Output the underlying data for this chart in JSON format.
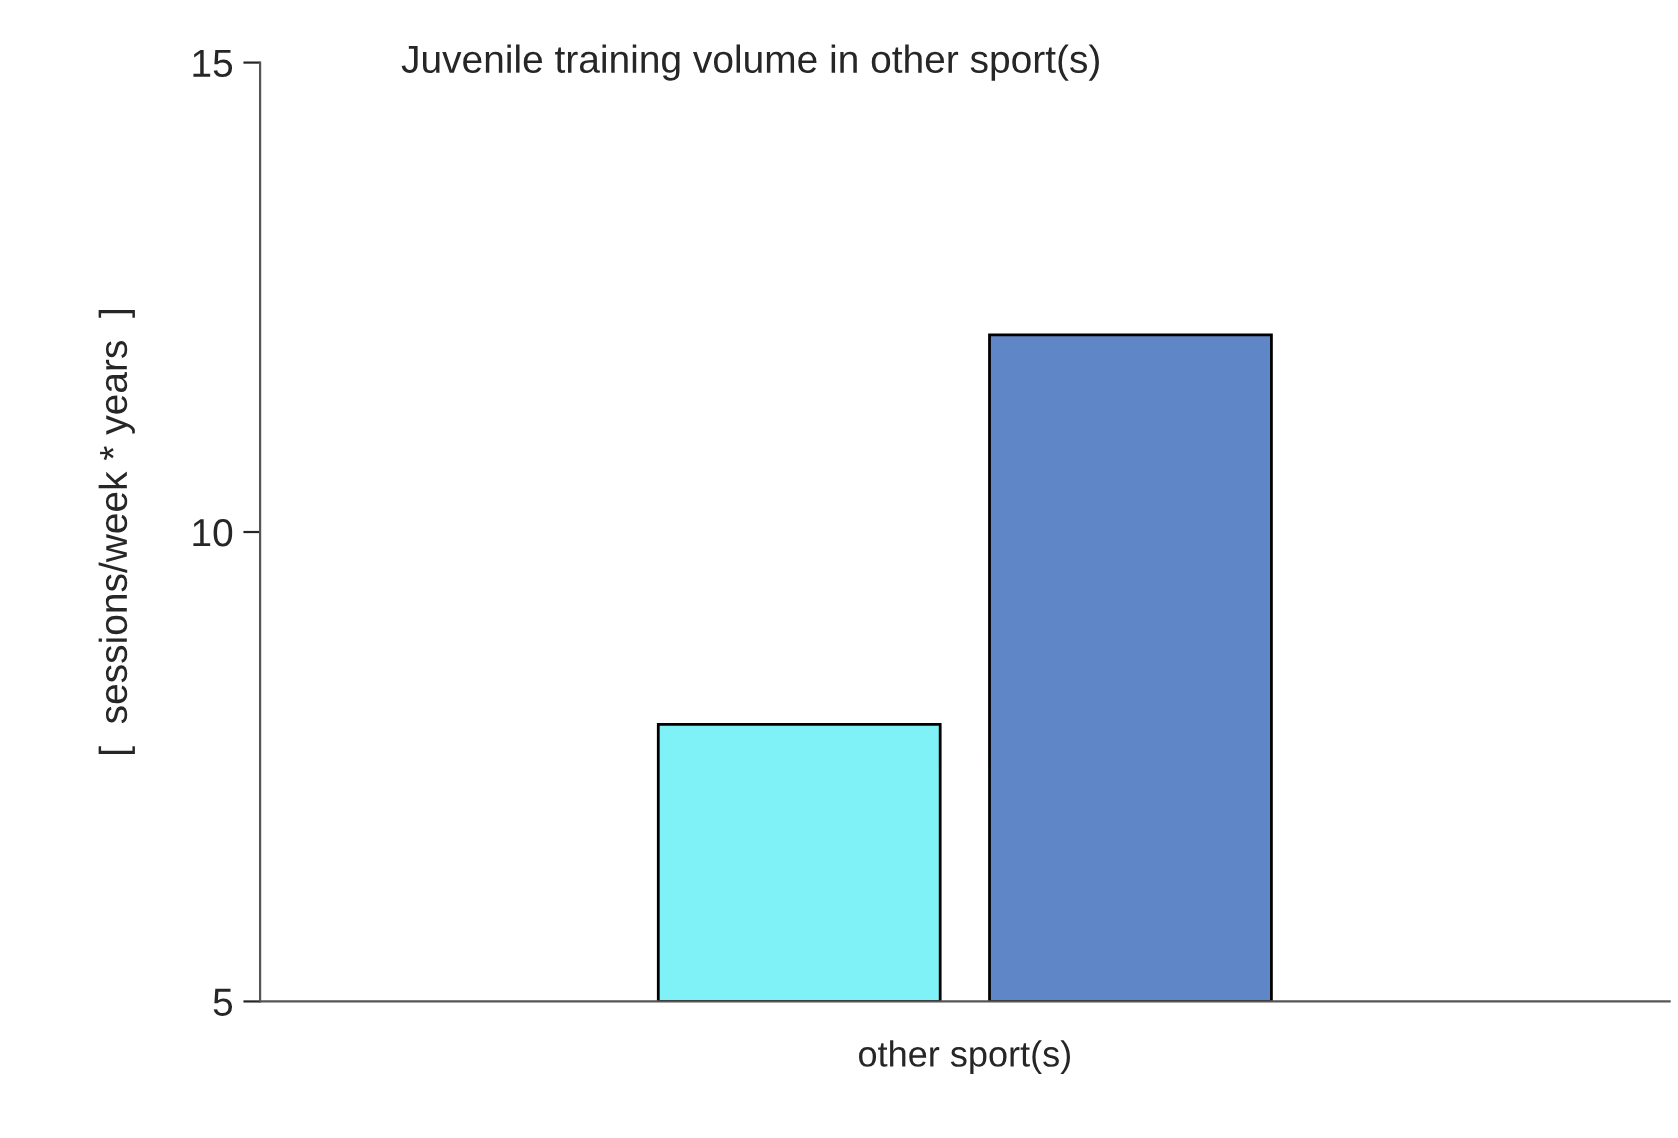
{
  "chart_data": {
    "type": "bar",
    "title": "Juvenile training volume in other sport(s)",
    "ylabel": "[  sessions/week * years  ]",
    "categories": [
      "other sport(s)"
    ],
    "series": [
      {
        "color": "#7ff2f7",
        "values": [
          7.95
        ]
      },
      {
        "color": "#5f86c6",
        "values": [
          12.1
        ]
      }
    ],
    "ylim": [
      5,
      15
    ],
    "yticks": [
      5,
      10,
      15
    ],
    "grid": false,
    "legend": false
  }
}
